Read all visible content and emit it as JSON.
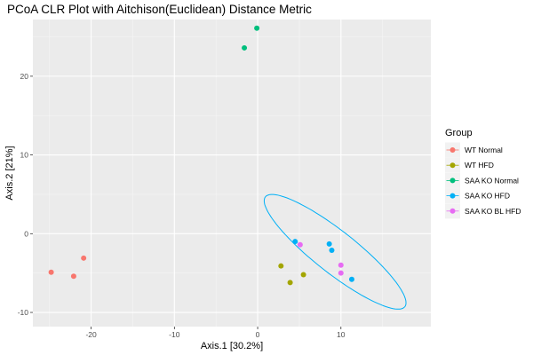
{
  "chart_data": {
    "type": "scatter",
    "title": "PCoA CLR Plot with Aitchison(Euclidean) Distance Metric",
    "xlabel": "Axis.1   [30.2%]",
    "ylabel": "Axis.2   [21%]",
    "xlim": [
      -27,
      20.8
    ],
    "ylim": [
      -11.8,
      27.2
    ],
    "xticks": [
      -20,
      -10,
      0,
      10
    ],
    "yticks": [
      -10,
      0,
      10,
      20
    ],
    "grid": true,
    "legend": {
      "title": "Group",
      "position": "right"
    },
    "colors": {
      "panel_background": "#ebebeb",
      "grid_major": "#ffffff",
      "grid_minor": "#f5f5f5"
    },
    "series": [
      {
        "name": "WT Normal",
        "color": "#F8766D",
        "points": [
          [
            -24.8,
            -4.9
          ],
          [
            -22.1,
            -5.4
          ],
          [
            -20.9,
            -3.1
          ]
        ]
      },
      {
        "name": "WT HFD",
        "color": "#A3A500",
        "points": [
          [
            2.8,
            -4.1
          ],
          [
            3.9,
            -6.2
          ],
          [
            5.5,
            -5.2
          ]
        ]
      },
      {
        "name": "SAA KO Normal",
        "color": "#00BF7D",
        "points": [
          [
            -1.6,
            23.6
          ],
          [
            -0.1,
            26.1
          ]
        ]
      },
      {
        "name": "SAA KO HFD",
        "color": "#00B0F6",
        "points": [
          [
            4.5,
            -1.0
          ],
          [
            8.6,
            -1.3
          ],
          [
            8.9,
            -2.1
          ],
          [
            11.3,
            -5.8
          ]
        ]
      },
      {
        "name": "SAA KO BL HFD",
        "color": "#E76BF3",
        "points": [
          [
            5.1,
            -1.4
          ],
          [
            10.0,
            -4.0
          ],
          [
            10.0,
            -5.0
          ]
        ]
      }
    ],
    "ellipse": {
      "group": "SAA KO HFD",
      "color": "#00B0F6",
      "center": [
        9.3,
        -2.3
      ],
      "semi_major": 10.9,
      "semi_minor": 2.6,
      "angle_deg": -40
    }
  }
}
